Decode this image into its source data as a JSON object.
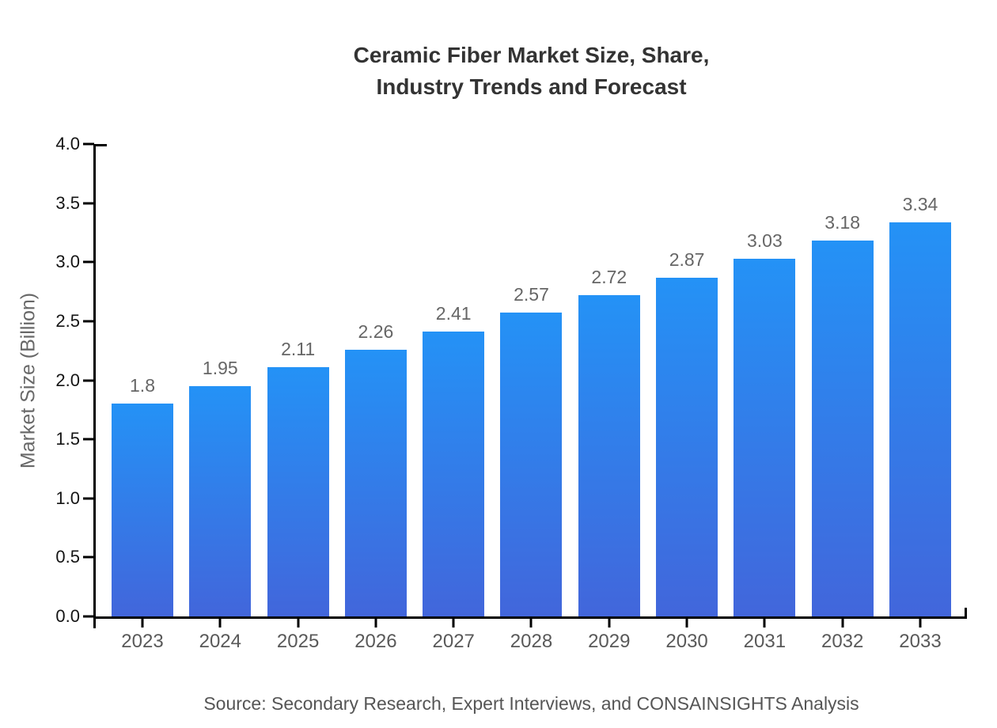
{
  "title": {
    "line1": "Ceramic Fiber Market Size, Share,",
    "line2": "Industry Trends and Forecast"
  },
  "source_note": "Source: Secondary Research, Expert Interviews, and CONSAINSIGHTS Analysis",
  "colors": {
    "bar_gradient_top": "#2492F6",
    "bar_gradient_bottom": "#4266DB",
    "axis": "#000000",
    "title_text": "#333333",
    "value_label_text": "#666666",
    "tick_label_text": "#141414",
    "year_label_text": "#595959",
    "source_text": "#555555"
  },
  "chart_data": {
    "type": "bar",
    "title": "Ceramic Fiber Market Size, Share, Industry Trends and Forecast",
    "xlabel": "",
    "ylabel": "Market Size (Billion)",
    "categories": [
      "2023",
      "2024",
      "2025",
      "2026",
      "2027",
      "2028",
      "2029",
      "2030",
      "2031",
      "2032",
      "2033"
    ],
    "values": [
      1.8,
      1.95,
      2.11,
      2.26,
      2.41,
      2.57,
      2.72,
      2.87,
      3.03,
      3.18,
      3.34
    ],
    "value_labels": [
      "1.8",
      "1.95",
      "2.11",
      "2.26",
      "2.41",
      "2.57",
      "2.72",
      "2.87",
      "3.03",
      "3.18",
      "3.34"
    ],
    "ylim": [
      0,
      4
    ],
    "ytick_labels": [
      "0.0",
      "0.5",
      "1.0",
      "1.5",
      "2.0",
      "2.5",
      "3.0",
      "3.5",
      "4.0"
    ],
    "yticks": [
      0.0,
      0.5,
      1.0,
      1.5,
      2.0,
      2.5,
      3.0,
      3.5,
      4.0
    ],
    "grid": false,
    "legend": false
  }
}
